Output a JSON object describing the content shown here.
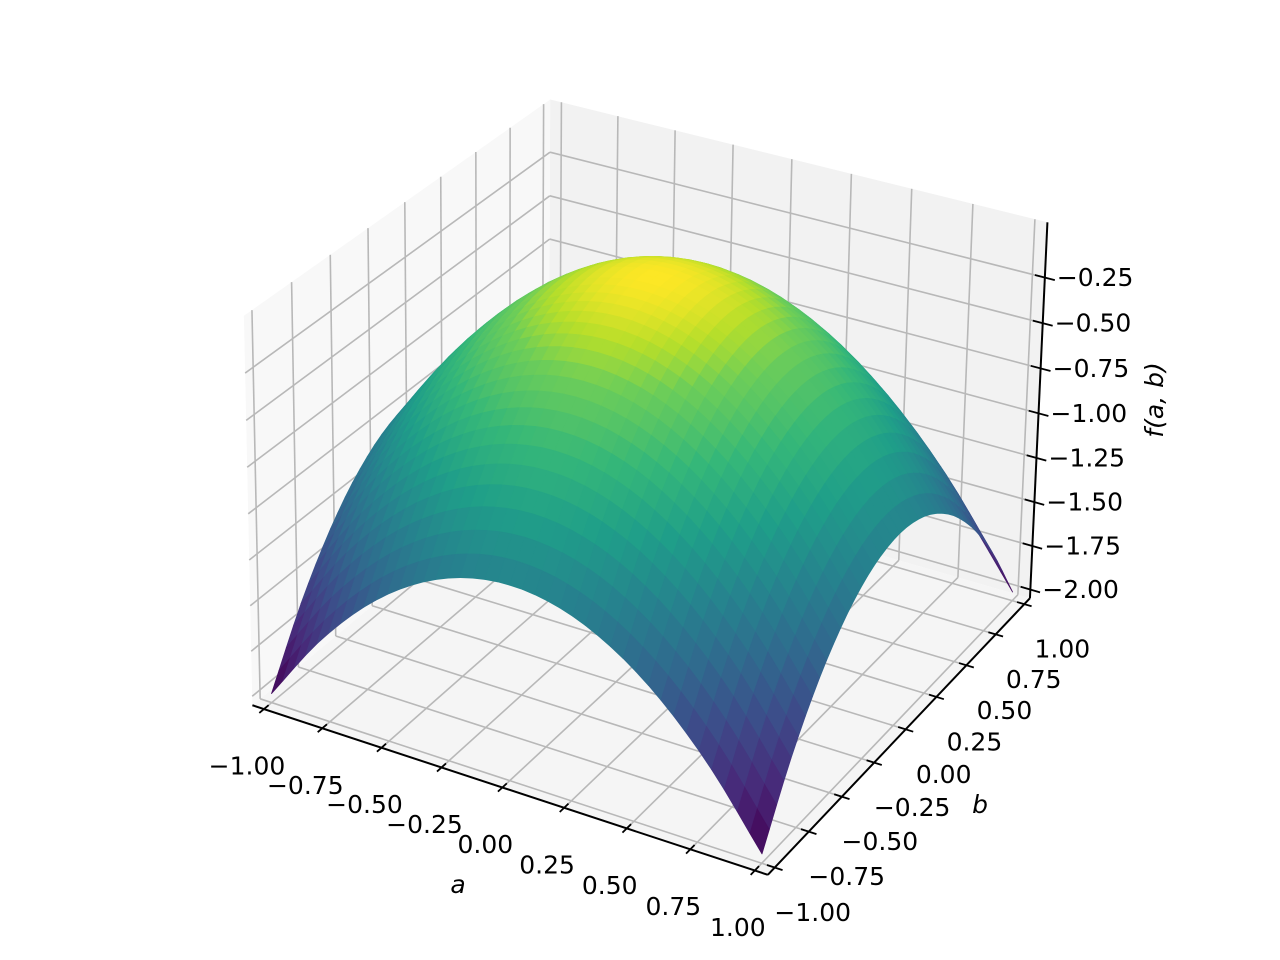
{
  "chart_data": {
    "type": "surface",
    "colormap": "viridis",
    "xlabel": "a",
    "ylabel": "b",
    "zlabel": "f(a, b)",
    "xlim": [
      -1.05,
      1.05
    ],
    "ylim": [
      -1.05,
      1.05
    ],
    "zlim": [
      -2.05,
      0.05
    ],
    "grid": true,
    "xticks": [
      -1,
      -0.75,
      -0.5,
      -0.25,
      0,
      0.25,
      0.5,
      0.75,
      1
    ],
    "xtick_labels": [
      "−1.00",
      "−0.75",
      "−0.50",
      "−0.25",
      "0.00",
      "0.25",
      "0.50",
      "0.75",
      "1.00"
    ],
    "yticks": [
      -1,
      -0.75,
      -0.5,
      -0.25,
      0,
      0.25,
      0.5,
      0.75,
      1
    ],
    "ytick_labels": [
      "−1.00",
      "−0.75",
      "−0.50",
      "−0.25",
      "0.00",
      "0.25",
      "0.50",
      "0.75",
      "1.00"
    ],
    "zticks": [
      -2,
      -1.75,
      -1.5,
      -1.25,
      -1,
      -0.75,
      -0.5,
      -0.25
    ],
    "ztick_labels": [
      "−2.00",
      "−1.75",
      "−1.50",
      "−1.25",
      "−1.00",
      "−0.75",
      "−0.50",
      "−0.25"
    ],
    "x": [
      -1,
      -0.8,
      -0.6,
      -0.4,
      -0.2,
      0,
      0.2,
      0.4,
      0.6,
      0.8,
      1
    ],
    "y": [
      -1,
      -0.8,
      -0.6,
      -0.4,
      -0.2,
      0,
      0.2,
      0.4,
      0.6,
      0.8,
      1
    ],
    "z": [
      [
        -2,
        -1.64,
        -1.36,
        -1.16,
        -1.04,
        -1,
        -1.04,
        -1.16,
        -1.36,
        -1.64,
        -2
      ],
      [
        -1.64,
        -1.28,
        -1.0,
        -0.8,
        -0.68,
        -0.64,
        -0.68,
        -0.8,
        -1.0,
        -1.28,
        -1.64
      ],
      [
        -1.36,
        -1.0,
        -0.72,
        -0.52,
        -0.4,
        -0.36,
        -0.4,
        -0.52,
        -0.72,
        -1.0,
        -1.36
      ],
      [
        -1.16,
        -0.8,
        -0.52,
        -0.32,
        -0.2,
        -0.16,
        -0.2,
        -0.32,
        -0.52,
        -0.8,
        -1.16
      ],
      [
        -1.04,
        -0.68,
        -0.4,
        -0.2,
        -0.08,
        -0.04,
        -0.08,
        -0.2,
        -0.4,
        -0.68,
        -1.04
      ],
      [
        -1,
        -0.64,
        -0.36,
        -0.16,
        -0.04,
        0,
        -0.04,
        -0.16,
        -0.36,
        -0.64,
        -1
      ],
      [
        -1.04,
        -0.68,
        -0.4,
        -0.2,
        -0.08,
        -0.04,
        -0.08,
        -0.2,
        -0.4,
        -0.68,
        -1.04
      ],
      [
        -1.16,
        -0.8,
        -0.52,
        -0.32,
        -0.2,
        -0.16,
        -0.2,
        -0.32,
        -0.52,
        -0.8,
        -1.16
      ],
      [
        -1.36,
        -1.0,
        -0.72,
        -0.52,
        -0.4,
        -0.36,
        -0.4,
        -0.52,
        -0.72,
        -1.0,
        -1.36
      ],
      [
        -1.64,
        -1.28,
        -1.0,
        -0.8,
        -0.68,
        -0.64,
        -0.68,
        -0.8,
        -1.0,
        -1.28,
        -1.64
      ],
      [
        -2,
        -1.64,
        -1.36,
        -1.16,
        -1.04,
        -1,
        -1.04,
        -1.16,
        -1.36,
        -1.64,
        -2
      ]
    ],
    "colors": {
      "pane_left": "#f8f8f8",
      "pane_back": "#f2f2f2",
      "pane_floor": "#f5f5f5",
      "grid": "#b8b8b8",
      "axis": "#000000"
    }
  }
}
